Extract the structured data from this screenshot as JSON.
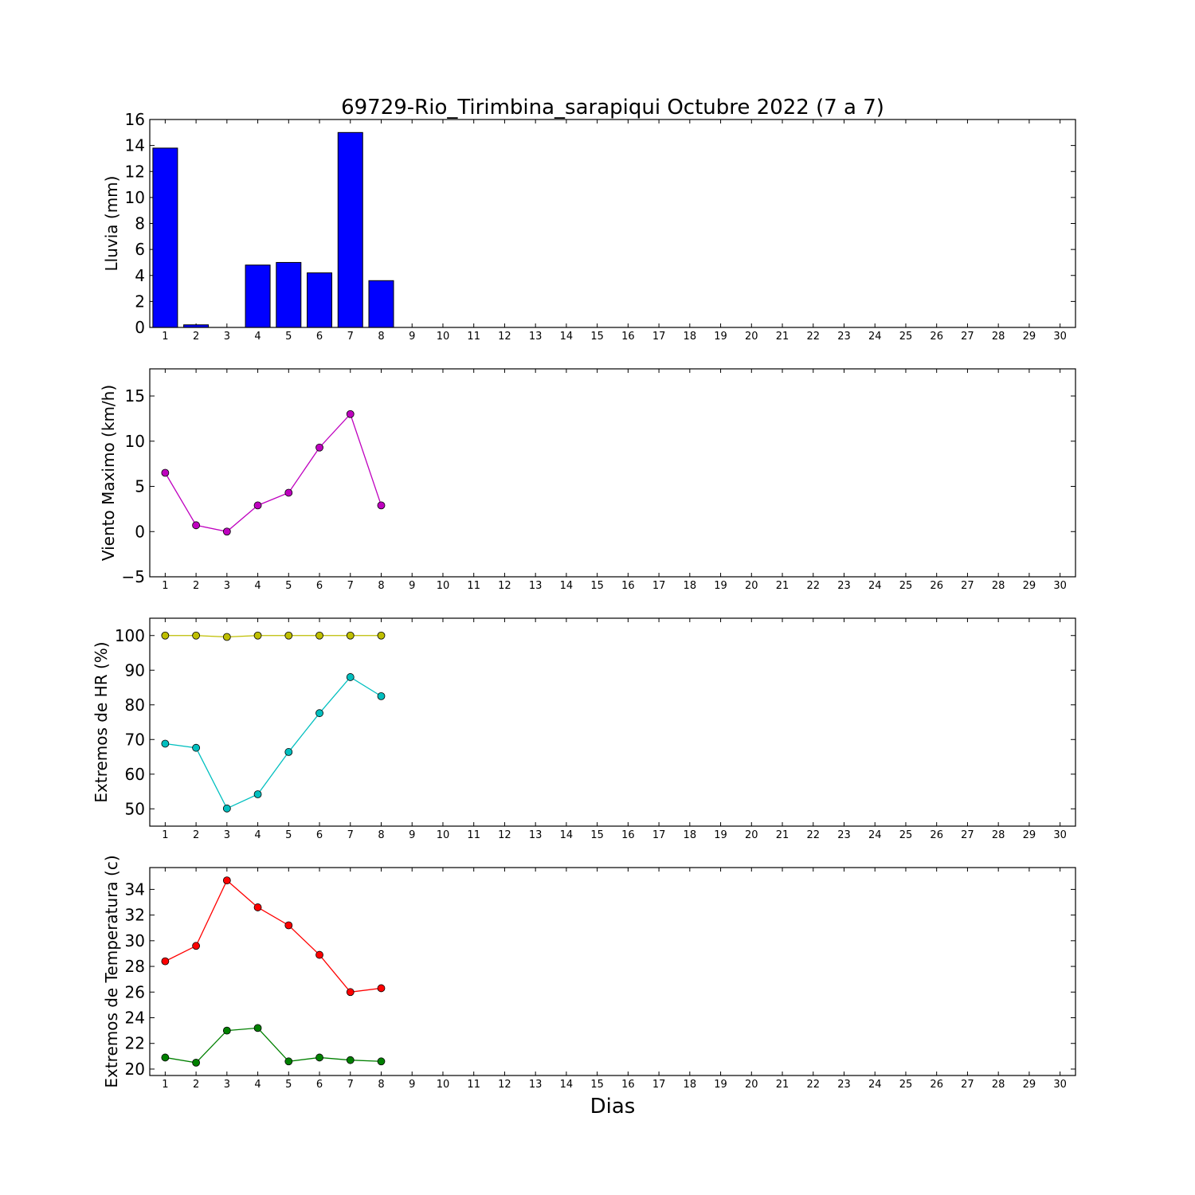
{
  "title": "69729-Rio_Tirimbina_sarapiqui Octubre 2022  (7 a 7)",
  "xlabel": "Dias",
  "chart_data": [
    {
      "type": "bar",
      "ylabel": "Lluvia (mm)",
      "x": [
        1,
        2,
        3,
        4,
        5,
        6,
        7,
        8
      ],
      "values": [
        13.8,
        0.2,
        0.0,
        4.8,
        5.0,
        4.2,
        15.0,
        3.6
      ],
      "color": "#0000ff",
      "ylim": [
        0,
        16
      ],
      "yticks": [
        0,
        2,
        4,
        6,
        8,
        10,
        12,
        14,
        16
      ],
      "xlim": [
        0.5,
        30.5
      ],
      "xticks": [
        1,
        2,
        3,
        4,
        5,
        6,
        7,
        8,
        9,
        10,
        11,
        12,
        13,
        14,
        15,
        16,
        17,
        18,
        19,
        20,
        21,
        22,
        23,
        24,
        25,
        26,
        27,
        28,
        29,
        30
      ]
    },
    {
      "type": "line",
      "ylabel": "Viento Maximo (km/h)",
      "series": [
        {
          "x": [
            1,
            2,
            3,
            4,
            5,
            6,
            7,
            8
          ],
          "values": [
            6.5,
            0.7,
            0.0,
            2.9,
            4.3,
            9.3,
            13.0,
            2.9
          ],
          "color": "#bf00bf"
        }
      ],
      "ylim": [
        -5,
        18
      ],
      "yticks": [
        -5,
        0,
        5,
        10,
        15
      ],
      "ytick_labels": [
        "−5",
        "0",
        "5",
        "10",
        "15"
      ],
      "xlim": [
        0.5,
        30.5
      ],
      "xticks": [
        1,
        2,
        3,
        4,
        5,
        6,
        7,
        8,
        9,
        10,
        11,
        12,
        13,
        14,
        15,
        16,
        17,
        18,
        19,
        20,
        21,
        22,
        23,
        24,
        25,
        26,
        27,
        28,
        29,
        30
      ]
    },
    {
      "type": "line",
      "ylabel": "Extremos de HR (%)",
      "series": [
        {
          "x": [
            1,
            2,
            3,
            4,
            5,
            6,
            7,
            8
          ],
          "values": [
            100,
            100,
            99.6,
            100,
            100,
            100,
            100,
            100
          ],
          "color": "#bfbf00"
        },
        {
          "x": [
            1,
            2,
            3,
            4,
            5,
            6,
            7,
            8
          ],
          "values": [
            68.8,
            67.6,
            50.1,
            54.2,
            66.4,
            77.6,
            88.0,
            82.5
          ],
          "color": "#00bfbf"
        }
      ],
      "ylim": [
        45,
        105
      ],
      "yticks": [
        50,
        60,
        70,
        80,
        90,
        100
      ],
      "xlim": [
        0.5,
        30.5
      ],
      "xticks": [
        1,
        2,
        3,
        4,
        5,
        6,
        7,
        8,
        9,
        10,
        11,
        12,
        13,
        14,
        15,
        16,
        17,
        18,
        19,
        20,
        21,
        22,
        23,
        24,
        25,
        26,
        27,
        28,
        29,
        30
      ]
    },
    {
      "type": "line",
      "ylabel": "Extremos de Temperatura (c)",
      "series": [
        {
          "x": [
            1,
            2,
            3,
            4,
            5,
            6,
            7,
            8
          ],
          "values": [
            28.4,
            29.6,
            34.7,
            32.6,
            31.2,
            28.9,
            26.0,
            26.3
          ],
          "color": "#ff0000"
        },
        {
          "x": [
            1,
            2,
            3,
            4,
            5,
            6,
            7,
            8
          ],
          "values": [
            20.9,
            20.5,
            23.0,
            23.2,
            20.6,
            20.9,
            20.7,
            20.6
          ],
          "color": "#008000"
        }
      ],
      "ylim": [
        19.5,
        35.7
      ],
      "yticks": [
        20,
        22,
        24,
        26,
        28,
        30,
        32,
        34
      ],
      "xlim": [
        0.5,
        30.5
      ],
      "xticks": [
        1,
        2,
        3,
        4,
        5,
        6,
        7,
        8,
        9,
        10,
        11,
        12,
        13,
        14,
        15,
        16,
        17,
        18,
        19,
        20,
        21,
        22,
        23,
        24,
        25,
        26,
        27,
        28,
        29,
        30
      ]
    }
  ]
}
